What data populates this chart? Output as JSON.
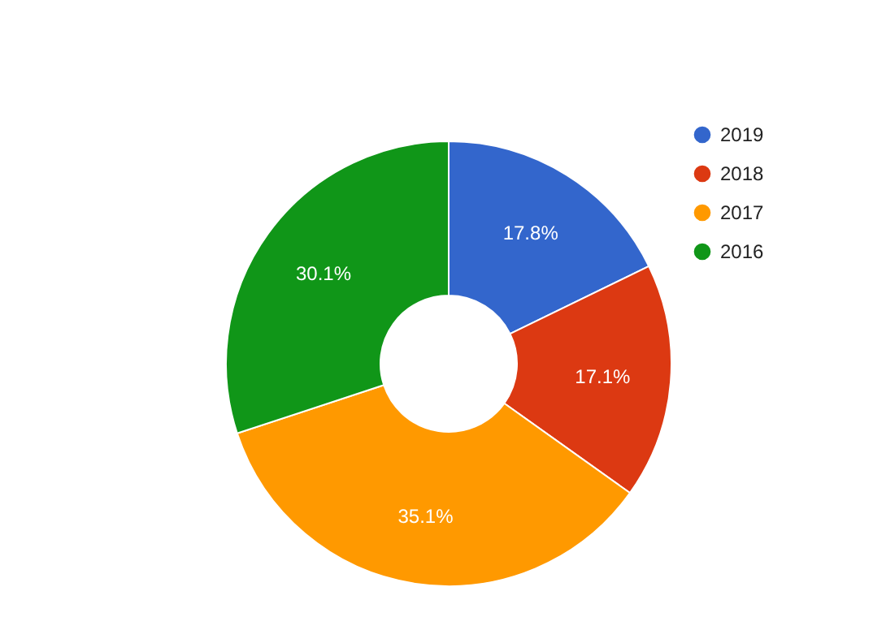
{
  "chart_data": {
    "type": "donut",
    "categories": [
      "2019",
      "2018",
      "2017",
      "2016"
    ],
    "values": [
      17.8,
      17.1,
      35.1,
      30.1
    ],
    "colors": [
      "#3366cc",
      "#dc3912",
      "#ff9900",
      "#109618"
    ],
    "value_labels": [
      "17.8%",
      "17.1%",
      "35.1%",
      "30.1%"
    ],
    "legend": "top right"
  }
}
